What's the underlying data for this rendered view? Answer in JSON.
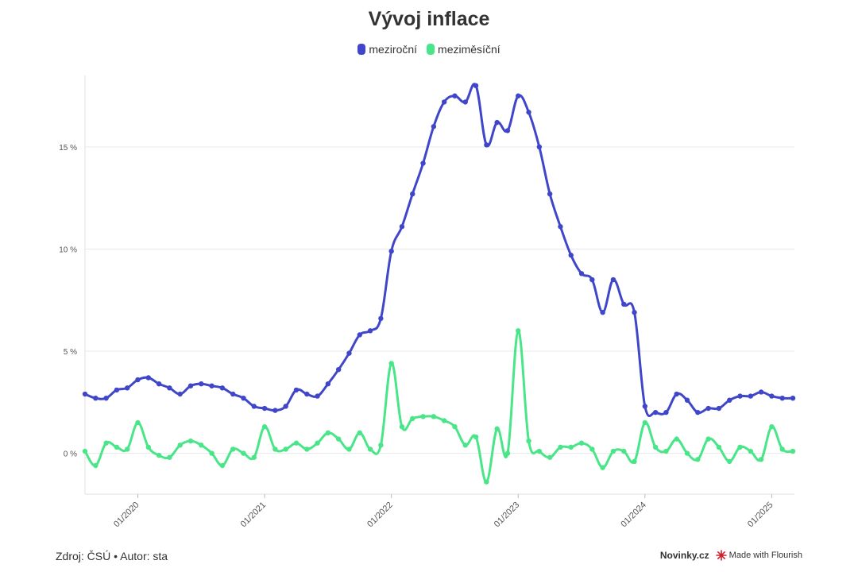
{
  "chart_data": {
    "type": "line",
    "title": "Vývoj inflace",
    "xlabel": "",
    "ylabel": "",
    "x_start": "2019-08",
    "x_ticks": [
      "01/2020",
      "01/2021",
      "01/2022",
      "01/2023",
      "01/2024",
      "01/2025"
    ],
    "y_ticks": [
      "0 %",
      "5 %",
      "10 %",
      "15 %"
    ],
    "ylim": [
      -2,
      18.5
    ],
    "grid": true,
    "legend_position": "top-center",
    "series": [
      {
        "name": "meziroční",
        "color": "#4046c9",
        "values": [
          2.9,
          2.7,
          2.7,
          3.1,
          3.2,
          3.6,
          3.7,
          3.4,
          3.2,
          2.9,
          3.3,
          3.4,
          3.3,
          3.2,
          2.9,
          2.7,
          2.3,
          2.2,
          2.1,
          2.3,
          3.1,
          2.9,
          2.8,
          3.4,
          4.1,
          4.9,
          5.8,
          6.0,
          6.6,
          9.9,
          11.1,
          12.7,
          14.2,
          16.0,
          17.2,
          17.5,
          17.2,
          18.0,
          15.1,
          16.2,
          15.8,
          17.5,
          16.7,
          15.0,
          12.7,
          11.1,
          9.7,
          8.8,
          8.5,
          6.9,
          8.5,
          7.3,
          6.9,
          2.3,
          2.0,
          2.0,
          2.9,
          2.6,
          2.0,
          2.2,
          2.2,
          2.6,
          2.8,
          2.8,
          3.0,
          2.8,
          2.7,
          2.7
        ]
      },
      {
        "name": "meziměsíční",
        "color": "#48e688",
        "values": [
          0.1,
          -0.6,
          0.5,
          0.3,
          0.2,
          1.5,
          0.3,
          -0.1,
          -0.2,
          0.4,
          0.6,
          0.4,
          0.0,
          -0.6,
          0.2,
          0.0,
          -0.2,
          1.3,
          0.2,
          0.2,
          0.5,
          0.2,
          0.5,
          1.0,
          0.7,
          0.2,
          1.0,
          0.2,
          0.4,
          4.4,
          1.3,
          1.7,
          1.8,
          1.8,
          1.6,
          1.3,
          0.4,
          0.8,
          -1.4,
          1.2,
          0.0,
          6.0,
          0.6,
          0.1,
          -0.2,
          0.3,
          0.3,
          0.5,
          0.2,
          -0.7,
          0.1,
          0.1,
          -0.4,
          1.5,
          0.3,
          0.1,
          0.7,
          0.0,
          -0.3,
          0.7,
          0.3,
          -0.4,
          0.3,
          0.1,
          -0.3,
          1.3,
          0.2,
          0.1
        ]
      }
    ]
  },
  "footer": {
    "source": "Zdroj: ČSÚ • Autor: sta",
    "brand": "Novinky.cz",
    "made_with": "Made with Flourish"
  }
}
